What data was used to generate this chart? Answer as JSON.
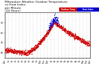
{
  "title": "Milwaukee Weather Outdoor Temperature",
  "title2": "vs Heat Index",
  "title3": "per Minute",
  "title4": "(24 Hours)",
  "title_fontsize": 3.2,
  "bg_color": "#ffffff",
  "plot_bg_color": "#ffffff",
  "red_color": "#cc0000",
  "blue_color": "#0000cc",
  "legend_label_temp": "Outdoor Temp",
  "legend_label_hi": "Heat Index",
  "y_min": 55,
  "y_max": 100,
  "x_min": 0,
  "x_max": 1440,
  "tick_fontsize": 2.2,
  "yticks": [
    60,
    70,
    80,
    90
  ],
  "xtick_positions": [
    0,
    60,
    120,
    180,
    240,
    300,
    360,
    420,
    480,
    540,
    600,
    660,
    720,
    780,
    840,
    900,
    960,
    1020,
    1080,
    1140,
    1200,
    1260,
    1320,
    1380,
    1440
  ],
  "xtick_labels": [
    "12a",
    "1a",
    "2a",
    "3a",
    "4a",
    "5a",
    "6a",
    "7a",
    "8a",
    "9a",
    "10a",
    "11a",
    "12p",
    "1p",
    "2p",
    "3p",
    "4p",
    "5p",
    "6p",
    "7p",
    "8p",
    "9p",
    "10p",
    "11p",
    "12a"
  ],
  "dot_size": 1.0,
  "grid_color": "#999999",
  "grid_style": ":"
}
